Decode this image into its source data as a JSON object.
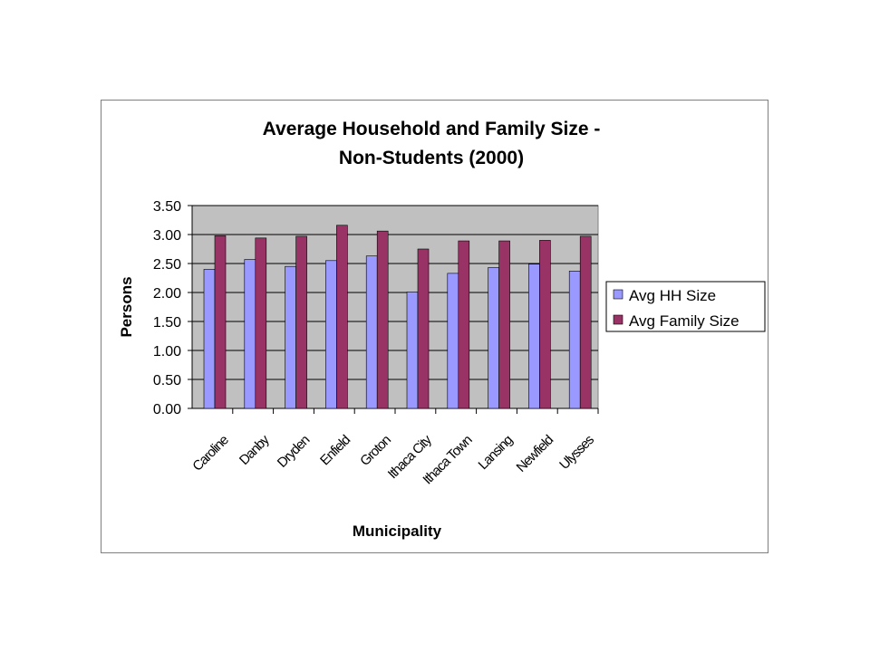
{
  "chart_data": {
    "type": "bar",
    "title": "Average Household and Family Size -",
    "title_line2": "Non-Students (2000)",
    "xlabel": "Municipality",
    "ylabel": "Persons",
    "ylim": [
      0,
      3.5
    ],
    "yticks": [
      "0.00",
      "0.50",
      "1.00",
      "1.50",
      "2.00",
      "2.50",
      "3.00",
      "3.50"
    ],
    "ytick_values": [
      0,
      0.5,
      1.0,
      1.5,
      2.0,
      2.5,
      3.0,
      3.5
    ],
    "grid": true,
    "legend_position": "right",
    "categories": [
      "Caroline",
      "Danby",
      "Dryden",
      "Enfield",
      "Groton",
      "Ithaca City",
      "Ithaca Town",
      "Lansing",
      "Newfield",
      "Ulysses"
    ],
    "series": [
      {
        "name": "Avg HH Size",
        "color": "#9999ff",
        "values": [
          2.4,
          2.57,
          2.45,
          2.55,
          2.63,
          2.01,
          2.33,
          2.43,
          2.49,
          2.37
        ]
      },
      {
        "name": "Avg Family Size",
        "color": "#993366",
        "values": [
          2.98,
          2.94,
          2.97,
          3.16,
          3.06,
          2.75,
          2.89,
          2.89,
          2.9,
          2.97
        ]
      }
    ],
    "plot_background": "#c0c0c0"
  }
}
